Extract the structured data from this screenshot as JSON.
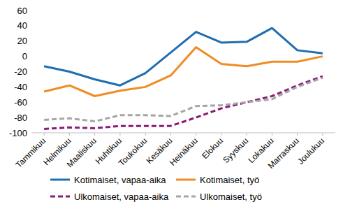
{
  "chart_data": {
    "type": "line",
    "categories": [
      "Tammikuu",
      "Helmikuu",
      "Maaliskuu",
      "Huhtikuu",
      "Toukokuu",
      "Kesäkuu",
      "Heinäkuu",
      "Elokuu",
      "Syyskuu",
      "Lokakuu",
      "Marraskuu",
      "Joulukuu"
    ],
    "series": [
      {
        "name": "Kotimaiset, vapaa-aika",
        "color": "#1f6eb0",
        "line_style": "solid",
        "values": [
          -13,
          -20,
          -30,
          -38,
          -22,
          5,
          32,
          18,
          19,
          37,
          8,
          4
        ]
      },
      {
        "name": "Kotimaiset, työ",
        "color": "#f08c24",
        "line_style": "solid",
        "values": [
          -46,
          -38,
          -52,
          -45,
          -40,
          -25,
          12,
          -10,
          -13,
          -7,
          -7,
          0
        ]
      },
      {
        "name": "Ulkomaiset, vapaa-aika",
        "color": "#8c1a7a",
        "line_style": "dashed",
        "values": [
          -95,
          -93,
          -94,
          -91,
          -91,
          -91,
          -80,
          -68,
          -60,
          -52,
          -38,
          -26
        ]
      },
      {
        "name": "Ulkomaiset, työ",
        "color": "#a6a6a6",
        "line_style": "dashed",
        "values": [
          -83,
          -81,
          -85,
          -77,
          -77,
          -78,
          -65,
          -64,
          -60,
          -56,
          -40,
          -28
        ]
      }
    ],
    "ylim": [
      -100,
      60
    ],
    "yticks": [
      -100,
      -80,
      -60,
      -40,
      -20,
      0,
      20,
      40,
      60
    ],
    "grid": false,
    "legend": "bottom"
  }
}
